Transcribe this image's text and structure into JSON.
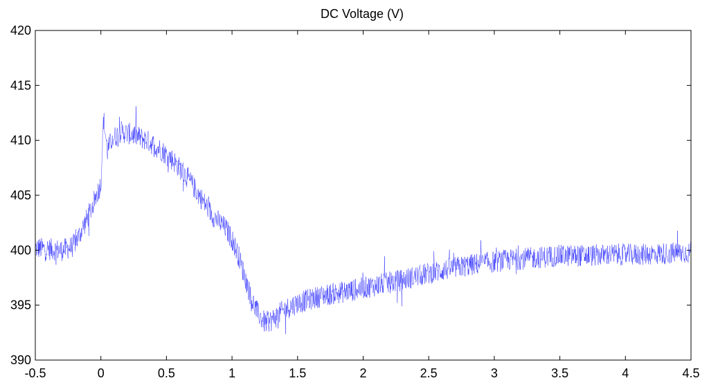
{
  "chart_data": {
    "type": "line",
    "title": "DC Voltage (V)",
    "xlabel": "",
    "ylabel": "",
    "xlim": [
      -0.5,
      4.5
    ],
    "ylim": [
      390,
      420
    ],
    "xticks": [
      -0.5,
      0,
      0.5,
      1,
      1.5,
      2,
      2.5,
      3,
      3.5,
      4,
      4.5
    ],
    "xtick_labels": [
      "-0.5",
      "0",
      "0.5",
      "1",
      "1.5",
      "2",
      "2.5",
      "3",
      "3.5",
      "4",
      "4.5"
    ],
    "yticks": [
      390,
      395,
      400,
      405,
      410,
      415,
      420
    ],
    "ytick_labels": [
      "390",
      "395",
      "400",
      "405",
      "410",
      "415",
      "420"
    ],
    "grid": false,
    "series": [
      {
        "color": "#0000ff",
        "noise_amplitude": 1.0,
        "x": [
          -0.5,
          -0.3,
          -0.22,
          -0.18,
          -0.1,
          -0.05,
          0.0,
          0.02,
          0.05,
          0.08,
          0.15,
          0.25,
          0.35,
          0.45,
          0.55,
          0.65,
          0.75,
          0.85,
          0.95,
          1.0,
          1.05,
          1.1,
          1.15,
          1.2,
          1.25,
          1.3,
          1.4,
          1.5,
          1.7,
          1.9,
          2.1,
          2.3,
          2.5,
          2.7,
          2.9,
          3.1,
          3.3,
          3.5,
          3.7,
          3.9,
          4.1,
          4.3,
          4.5
        ],
        "y": [
          400.2,
          400.0,
          400.3,
          401.0,
          403.0,
          404.5,
          406.0,
          412.0,
          409.0,
          410.0,
          410.8,
          410.5,
          410.0,
          409.2,
          408.2,
          406.8,
          405.0,
          403.2,
          402.0,
          401.0,
          399.5,
          397.5,
          395.5,
          394.2,
          393.4,
          393.6,
          394.6,
          395.2,
          395.9,
          396.3,
          396.8,
          397.3,
          397.9,
          398.4,
          398.8,
          399.1,
          399.3,
          399.5,
          399.5,
          399.6,
          399.6,
          399.7,
          399.8
        ]
      }
    ]
  }
}
